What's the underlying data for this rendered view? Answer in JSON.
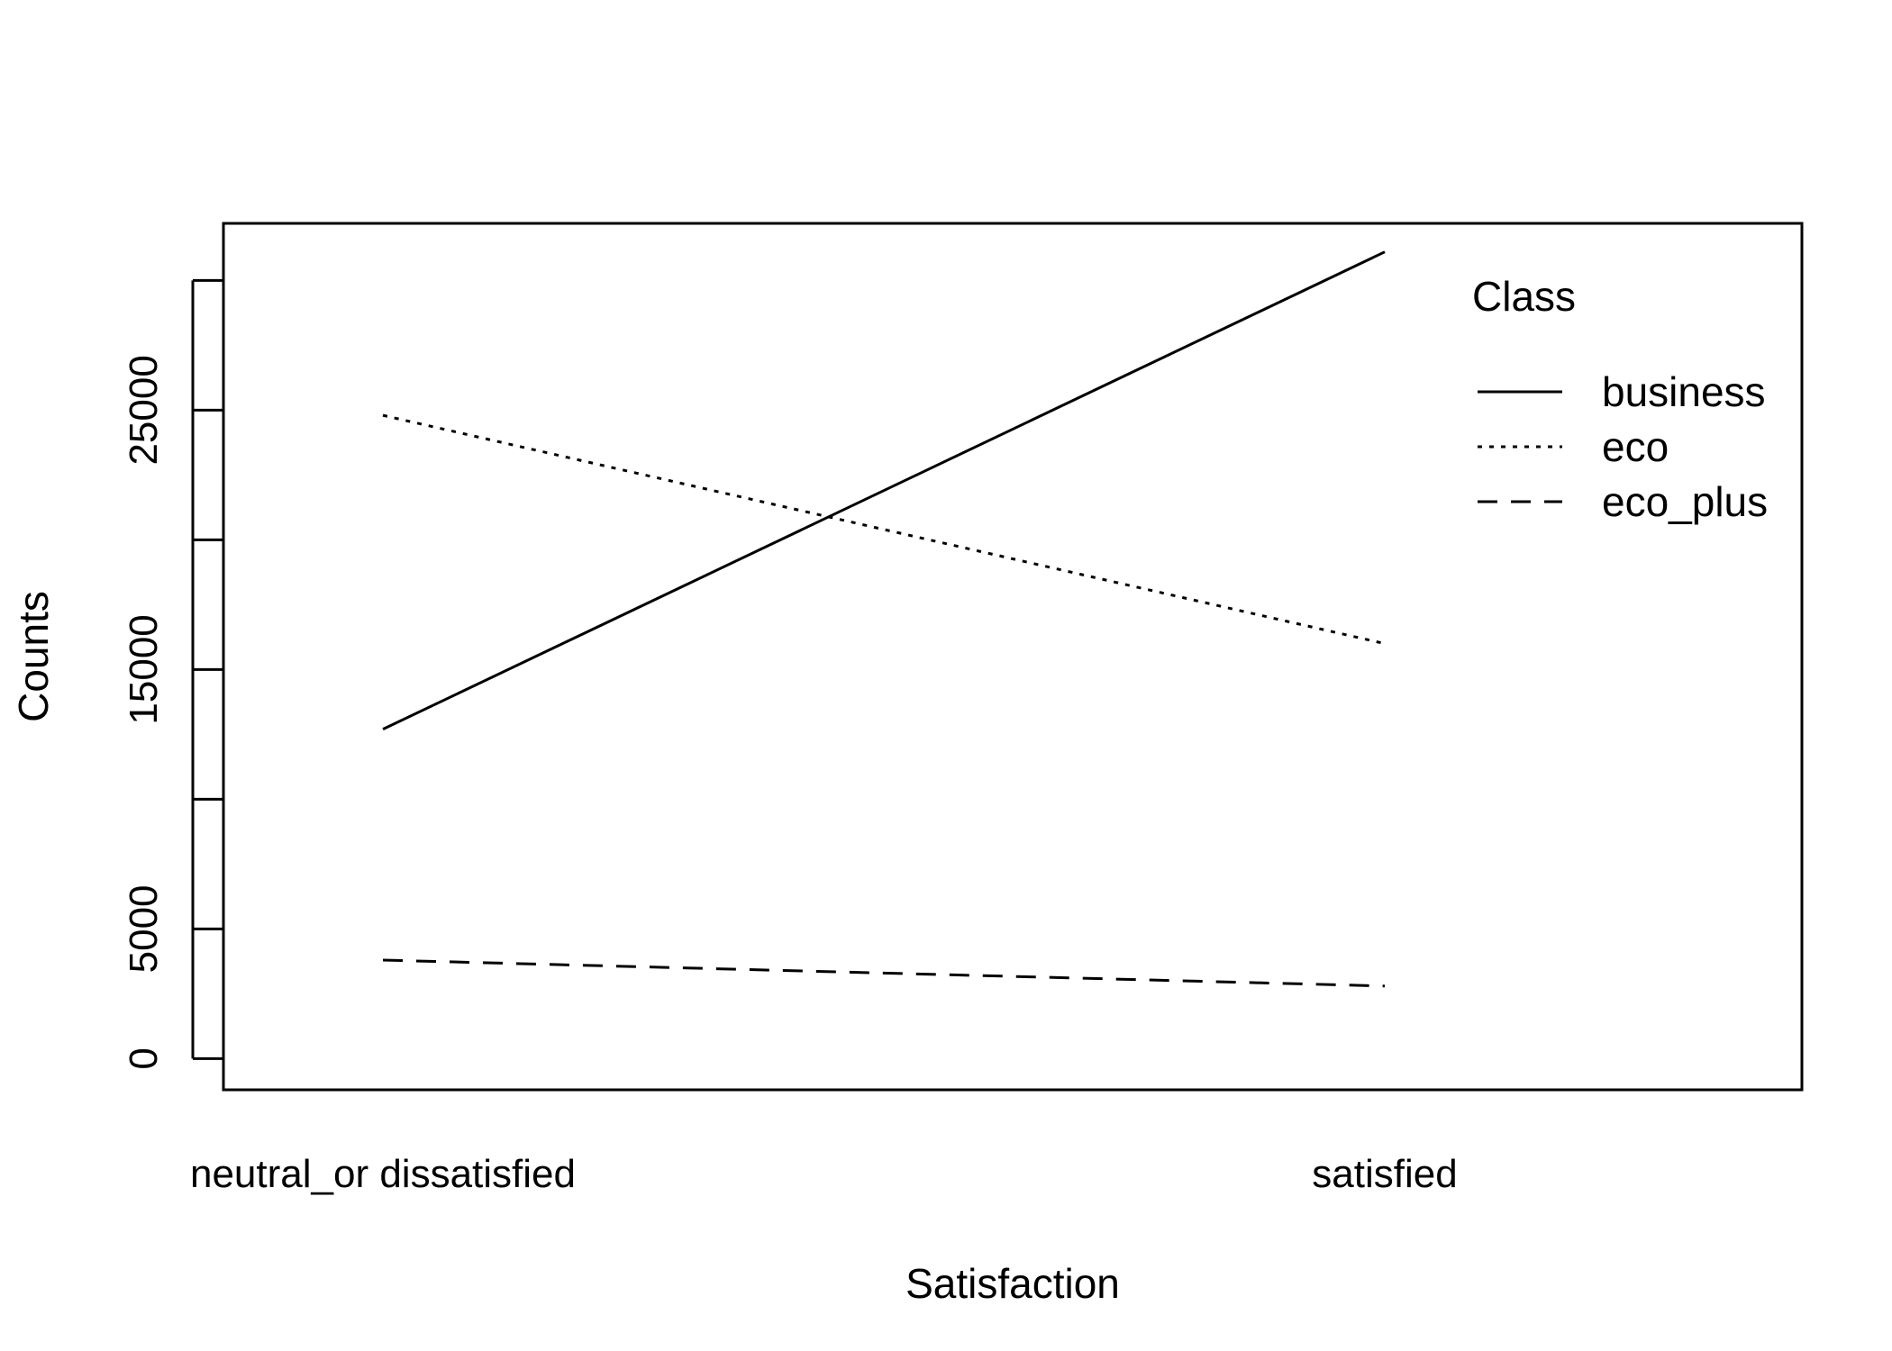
{
  "chart_data": {
    "type": "line",
    "xlabel": "Satisfaction",
    "ylabel": "Counts",
    "categories": [
      "neutral_or dissatisfied",
      "satisfied"
    ],
    "y_ticks": [
      0,
      5000,
      15000,
      25000
    ],
    "y_minor_ticks": [
      10000,
      20000,
      30000
    ],
    "ylim": [
      -1200,
      32200
    ],
    "legend": {
      "title": "Class",
      "placement": "top-right"
    },
    "series": [
      {
        "name": "business",
        "values": [
          12700,
          31100
        ],
        "line_style": "solid"
      },
      {
        "name": "eco",
        "values": [
          24800,
          16000
        ],
        "line_style": "dotted"
      },
      {
        "name": "eco_plus",
        "values": [
          3800,
          2800
        ],
        "line_style": "dashed"
      }
    ],
    "grid": false,
    "colors": {
      "line": "#000000",
      "background": "#ffffff"
    }
  }
}
